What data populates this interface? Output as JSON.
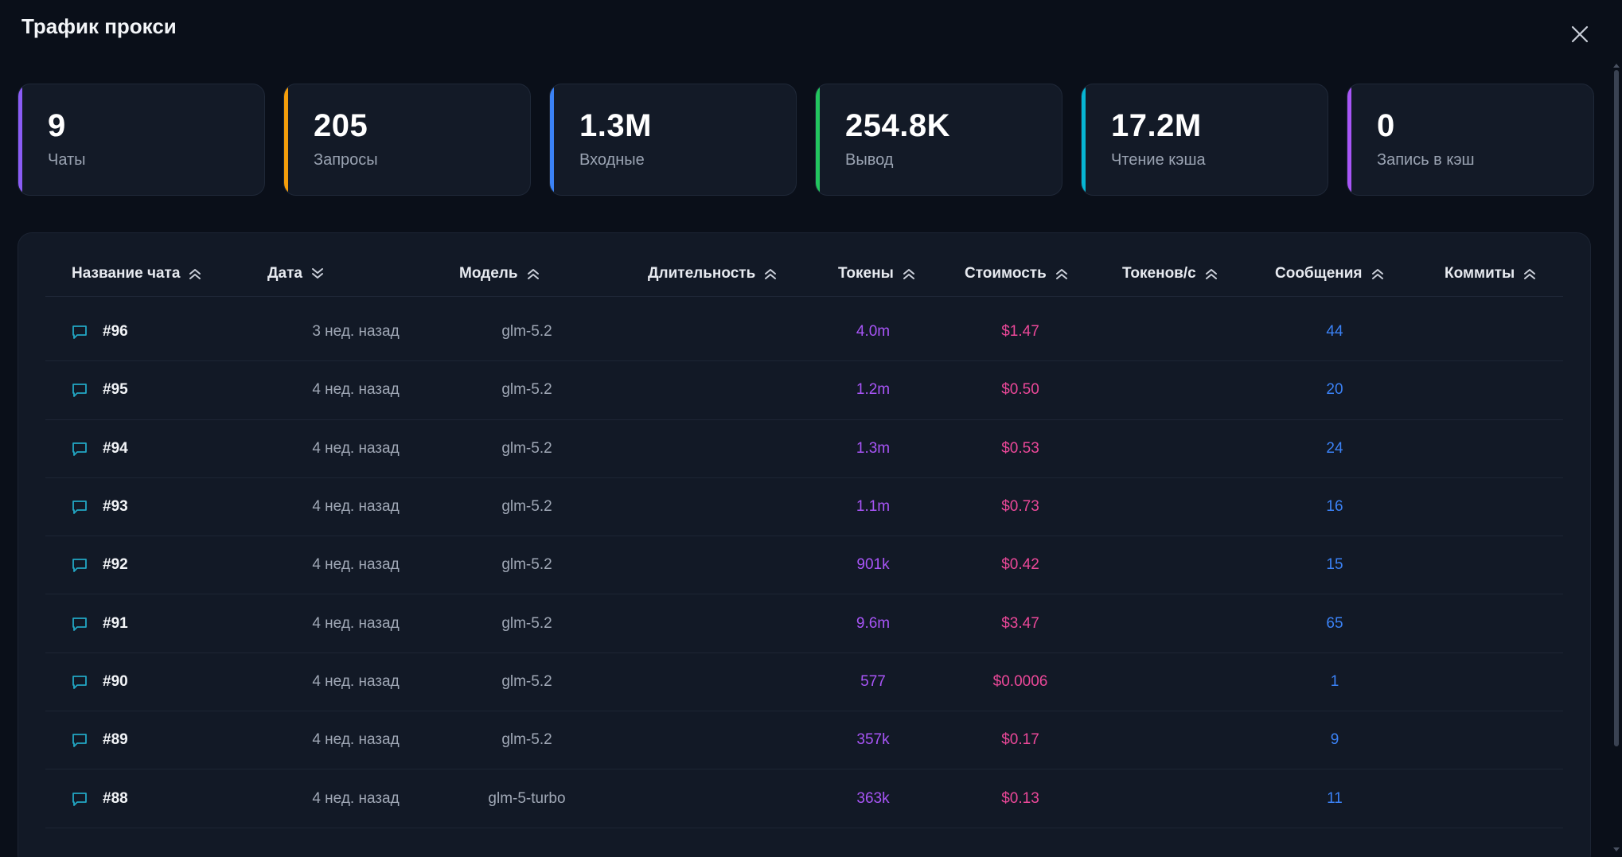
{
  "modal": {
    "title": "Трафик прокси"
  },
  "stats": [
    {
      "value": "9",
      "label": "Чаты",
      "color": "#8b5cf6"
    },
    {
      "value": "205",
      "label": "Запросы",
      "color": "#f59e0b"
    },
    {
      "value": "1.3M",
      "label": "Входные",
      "color": "#3b82f6"
    },
    {
      "value": "254.8K",
      "label": "Вывод",
      "color": "#22c55e"
    },
    {
      "value": "17.2M",
      "label": "Чтение кэша",
      "color": "#06b6d4"
    },
    {
      "value": "0",
      "label": "Запись в кэш",
      "color": "#a855f7"
    }
  ],
  "table": {
    "columns": [
      {
        "label": "Название чата",
        "sort": "up"
      },
      {
        "label": "Дата",
        "sort": "down"
      },
      {
        "label": "Модель",
        "sort": "up"
      },
      {
        "label": "Длительность",
        "sort": "up"
      },
      {
        "label": "Токены",
        "sort": "up"
      },
      {
        "label": "Стоимость",
        "sort": "up"
      },
      {
        "label": "Токенов/с",
        "sort": "up"
      },
      {
        "label": "Сообщения",
        "sort": "up"
      },
      {
        "label": "Коммиты",
        "sort": "up"
      }
    ],
    "rows": [
      {
        "name": "#96",
        "date": "3 нед. назад",
        "model": "glm-5.2",
        "tokens": "4.0m",
        "cost": "$1.47",
        "messages": "44"
      },
      {
        "name": "#95",
        "date": "4 нед. назад",
        "model": "glm-5.2",
        "tokens": "1.2m",
        "cost": "$0.50",
        "messages": "20"
      },
      {
        "name": "#94",
        "date": "4 нед. назад",
        "model": "glm-5.2",
        "tokens": "1.3m",
        "cost": "$0.53",
        "messages": "24"
      },
      {
        "name": "#93",
        "date": "4 нед. назад",
        "model": "glm-5.2",
        "tokens": "1.1m",
        "cost": "$0.73",
        "messages": "16"
      },
      {
        "name": "#92",
        "date": "4 нед. назад",
        "model": "glm-5.2",
        "tokens": "901k",
        "cost": "$0.42",
        "messages": "15"
      },
      {
        "name": "#91",
        "date": "4 нед. назад",
        "model": "glm-5.2",
        "tokens": "9.6m",
        "cost": "$3.47",
        "messages": "65"
      },
      {
        "name": "#90",
        "date": "4 нед. назад",
        "model": "glm-5.2",
        "tokens": "577",
        "cost": "$0.0006",
        "messages": "1"
      },
      {
        "name": "#89",
        "date": "4 нед. назад",
        "model": "glm-5.2",
        "tokens": "357k",
        "cost": "$0.17",
        "messages": "9"
      },
      {
        "name": "#88",
        "date": "4 нед. назад",
        "model": "glm-5-turbo",
        "tokens": "363k",
        "cost": "$0.13",
        "messages": "11"
      }
    ]
  },
  "icons": {
    "close": "close-icon",
    "chat": "chat-bubble-icon",
    "sort_up": "chevron-double-up-icon",
    "sort_down": "chevron-double-down-icon"
  }
}
